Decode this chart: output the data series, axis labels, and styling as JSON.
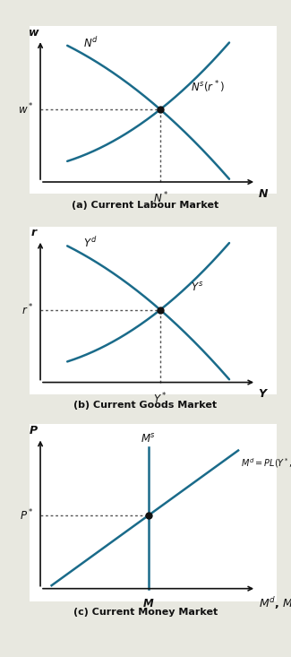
{
  "curve_color": "#1a6b8a",
  "curve_lw": 1.8,
  "dot_color": "#111111",
  "dot_size": 5,
  "dotted_color": "#555555",
  "dotted_lw": 1.0,
  "axis_color": "#111111",
  "axis_lw": 1.2,
  "bg_color": "#e8e8e0",
  "panel_bg": "#ffffff",
  "label_color": "#111111",
  "panel_a": {
    "xlabel": "N",
    "ylabel": "w",
    "curve1_label": "$N^d$",
    "curve2_label": "$N^s(r^*)$",
    "xstar_label": "$N^*$",
    "ystar_label": "$w^*$",
    "title": "(a) Current Labour Market"
  },
  "panel_b": {
    "xlabel": "Y",
    "ylabel": "r",
    "curve1_label": "$Y^d$",
    "curve2_label": "$Y^s$",
    "xstar_label": "$Y^*$",
    "ystar_label": "$r^*$",
    "title": "(b) Current Goods Market"
  },
  "panel_c": {
    "xlabel": "$M^d$, $M^s$",
    "ylabel": "P",
    "ms_label": "$M^s$",
    "md_label": "$M^d = PL(Y^*, r^* + i)$",
    "xstar_label": "M",
    "ystar_label": "$P^*$",
    "title": "(c) Current Money Market"
  }
}
